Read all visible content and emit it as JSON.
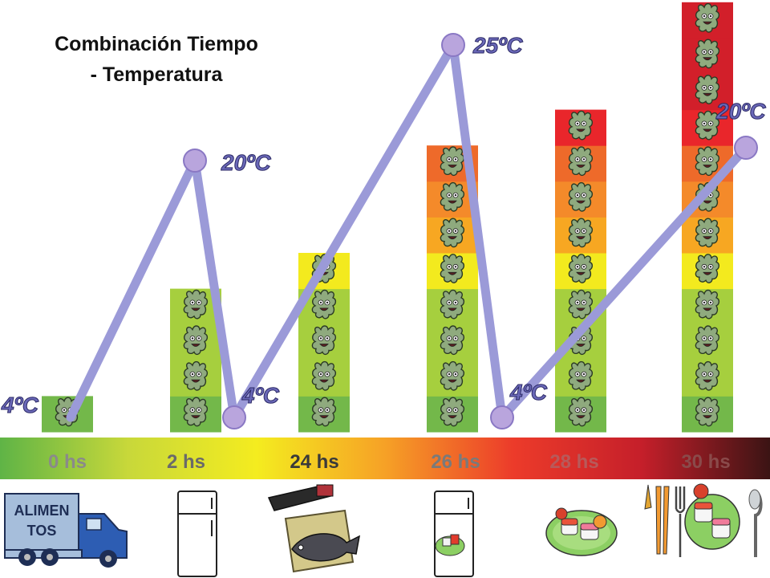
{
  "title": {
    "line1": "Combinación Tiempo",
    "line2": "- Temperatura"
  },
  "colors": {
    "line": "#9b9ad8",
    "marker": "#b9a5dd",
    "levels": [
      "#73b84a",
      "#a6cf3e",
      "#bdd83e",
      "#d5de33",
      "#f3ea1e",
      "#f7a722",
      "#f48a2a",
      "#ee6a2a",
      "#e9262b",
      "#d21f2a"
    ],
    "timeline_gradient": [
      "#5fb446",
      "#c8d83a",
      "#f4ec1f",
      "#f6a126",
      "#ec3b2a",
      "#c51f2a",
      "#3b1414"
    ]
  },
  "chart_data": {
    "type": "bar",
    "categories": [
      "0 hs",
      "2 hs",
      "24 hs",
      "26 hs",
      "28 hs",
      "30 hs"
    ],
    "values": [
      1,
      4,
      5,
      8,
      9,
      12
    ],
    "bar_levels": [
      [
        0
      ],
      [
        0,
        1,
        1,
        1
      ],
      [
        0,
        1,
        1,
        1,
        4
      ],
      [
        0,
        1,
        1,
        1,
        4,
        5,
        6,
        7
      ],
      [
        0,
        1,
        1,
        1,
        4,
        5,
        6,
        7,
        8
      ],
      [
        0,
        1,
        1,
        1,
        4,
        5,
        6,
        7,
        8,
        9,
        9,
        9
      ]
    ],
    "temperature_curve": {
      "points": [
        {
          "time_index": 0,
          "temperature": "4ºC"
        },
        {
          "time_index": 1,
          "temperature": "20ºC"
        },
        {
          "time_index": 2,
          "temperature": "4ºC"
        },
        {
          "time_index": 3,
          "temperature": "25ºC"
        },
        {
          "time_index": 4,
          "temperature": "4ºC"
        },
        {
          "time_index": 5,
          "temperature": "20ºC"
        }
      ]
    },
    "timeline_labels": [
      "0 hs",
      "2 hs",
      "24 hs",
      "26 hs",
      "28 hs",
      "30 hs"
    ]
  },
  "illustrations": {
    "truck_text_line1": "ALIMEN",
    "truck_text_line2": "TOS",
    "icons": [
      "delivery-truck-icon",
      "refrigerator-icon",
      "fish-board-icon",
      "refrigerator-with-food-icon",
      "sushi-plate-icon",
      "sushi-plate-with-cutlery-icon"
    ]
  }
}
